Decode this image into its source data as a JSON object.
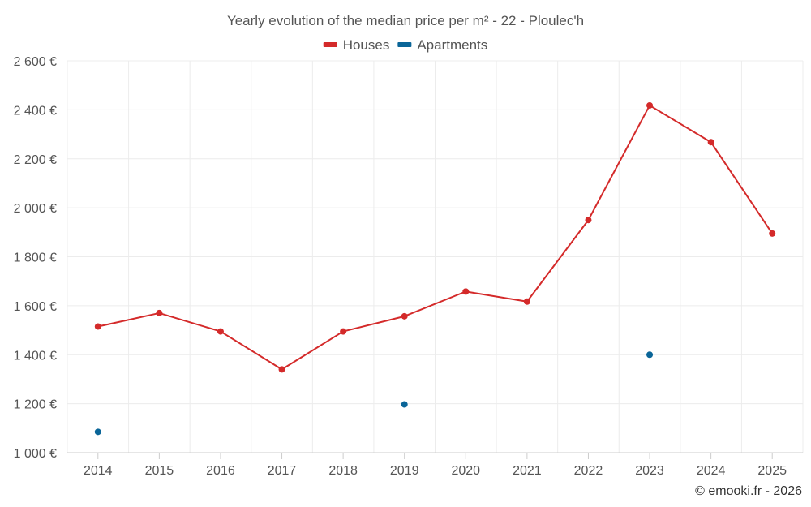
{
  "chart_data": {
    "type": "line",
    "title": "Yearly evolution of the median price per m² - 22 - Ploulec'h",
    "categories": [
      "2014",
      "2015",
      "2016",
      "2017",
      "2018",
      "2019",
      "2020",
      "2021",
      "2022",
      "2023",
      "2024",
      "2025"
    ],
    "series": [
      {
        "name": "Houses",
        "color": "#d42a2a",
        "style": "line-with-markers",
        "values": [
          1515,
          1570,
          1495,
          1340,
          1495,
          1557,
          1658,
          1617,
          1950,
          2418,
          2268,
          1895
        ]
      },
      {
        "name": "Apartments",
        "color": "#0a6598",
        "style": "markers-only",
        "values": [
          1085,
          null,
          null,
          null,
          null,
          1197,
          null,
          null,
          null,
          1400,
          null,
          null
        ]
      }
    ],
    "ylim": [
      1000,
      2600
    ],
    "yticks": [
      1000,
      1200,
      1400,
      1600,
      1800,
      2000,
      2200,
      2400,
      2600
    ],
    "ytick_labels": [
      "1 000 €",
      "1 200 €",
      "1 400 €",
      "1 600 €",
      "1 800 €",
      "2 000 €",
      "2 200 €",
      "2 400 €",
      "2 600 €"
    ],
    "xlabel": "",
    "ylabel": "",
    "grid": true,
    "legend_position": "top-center"
  },
  "credit": "© emooki.fr - 2026"
}
